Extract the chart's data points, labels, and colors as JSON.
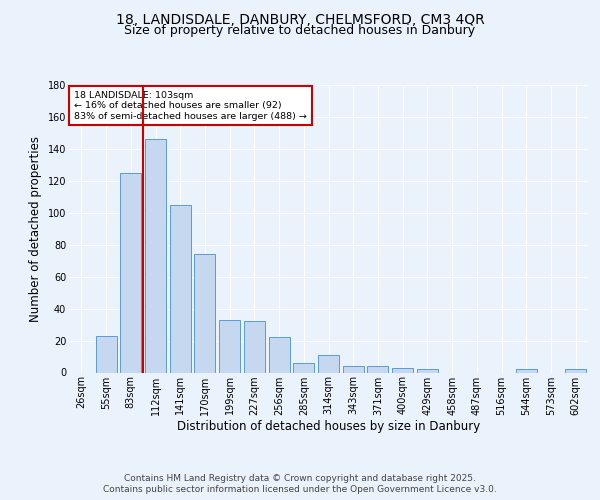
{
  "title_line1": "18, LANDISDALE, DANBURY, CHELMSFORD, CM3 4QR",
  "title_line2": "Size of property relative to detached houses in Danbury",
  "xlabel": "Distribution of detached houses by size in Danbury",
  "ylabel": "Number of detached properties",
  "footer_line1": "Contains HM Land Registry data © Crown copyright and database right 2025.",
  "footer_line2": "Contains public sector information licensed under the Open Government Licence v3.0.",
  "bar_labels": [
    "26sqm",
    "55sqm",
    "83sqm",
    "112sqm",
    "141sqm",
    "170sqm",
    "199sqm",
    "227sqm",
    "256sqm",
    "285sqm",
    "314sqm",
    "343sqm",
    "371sqm",
    "400sqm",
    "429sqm",
    "458sqm",
    "487sqm",
    "516sqm",
    "544sqm",
    "573sqm",
    "602sqm"
  ],
  "bar_values": [
    0,
    23,
    125,
    146,
    105,
    74,
    33,
    32,
    22,
    6,
    11,
    4,
    4,
    3,
    2,
    0,
    0,
    0,
    2,
    0,
    2
  ],
  "bar_color": "#c5d8f0",
  "bar_edge_color": "#5b9bd5",
  "reference_line_color": "#cc0000",
  "annotation_title": "18 LANDISDALE: 103sqm",
  "annotation_line1": "← 16% of detached houses are smaller (92)",
  "annotation_line2": "83% of semi-detached houses are larger (488) →",
  "annotation_box_color": "#cc0000",
  "ylim": [
    0,
    180
  ],
  "yticks": [
    0,
    20,
    40,
    60,
    80,
    100,
    120,
    140,
    160,
    180
  ],
  "background_color": "#eaf2fb",
  "plot_bg_color": "#eaf2fb",
  "grid_color": "#ffffff",
  "title_fontsize": 10,
  "subtitle_fontsize": 9,
  "axis_label_fontsize": 8.5,
  "tick_fontsize": 7,
  "footer_fontsize": 6.5
}
